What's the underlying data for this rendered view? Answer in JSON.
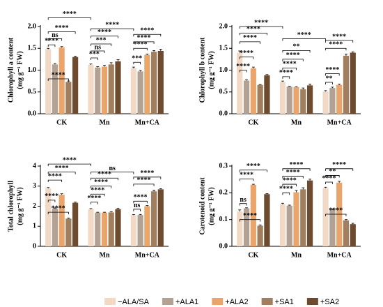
{
  "legend": [
    {
      "name": "−ALA/SA",
      "color": "#f1d9c6"
    },
    {
      "name": "+ALA1",
      "color": "#b3a293"
    },
    {
      "name": "+ALA2",
      "color": "#eaa56d"
    },
    {
      "name": "+SA1",
      "color": "#a07e5e"
    },
    {
      "name": "+SA2",
      "color": "#6e4a2f"
    }
  ],
  "chart_data": [
    {
      "type": "bar",
      "ylabel": [
        "Chlorophyll a content",
        "(mg g⁻¹ FW)"
      ],
      "categories": [
        "CK",
        "Mn",
        "Mn+CA"
      ],
      "ylim": [
        0,
        2
      ],
      "yticks": [
        {
          "value": 0,
          "label": "0.0"
        },
        0.5,
        {
          "value": 1,
          "label": "1.0"
        },
        1.5,
        {
          "value": 2,
          "label": "2.0"
        }
      ],
      "series": [
        {
          "values": [
            1.48,
            1.12,
            1.04
          ],
          "errors": [
            0.02,
            0.02,
            0.03
          ]
        },
        {
          "values": [
            1.13,
            1.06,
            0.97
          ],
          "errors": [
            0.02,
            0.02,
            0.02
          ]
        },
        {
          "values": [
            1.52,
            1.08,
            1.35
          ],
          "errors": [
            0.02,
            0.03,
            0.02
          ]
        },
        {
          "values": [
            0.73,
            1.13,
            1.42
          ],
          "errors": [
            0.02,
            0.04,
            0.03
          ]
        },
        {
          "values": [
            1.3,
            1.2,
            1.44
          ],
          "errors": [
            0.02,
            0.04,
            0.04
          ]
        }
      ],
      "brackets": [
        {
          "label": "****",
          "from": [
            0,
            0
          ],
          "to": [
            1,
            0
          ],
          "y": 2.2
        },
        {
          "label": "****",
          "from": [
            1,
            0
          ],
          "to": [
            2,
            0
          ],
          "y": 1.95
        },
        {
          "label": "****",
          "from": [
            0,
            0
          ],
          "to": [
            0,
            4
          ],
          "y": 1.88
        },
        {
          "label": "ns",
          "from": [
            0,
            0
          ],
          "to": [
            0,
            2
          ],
          "y": 1.72
        },
        {
          "label": "****",
          "from": [
            0,
            0
          ],
          "to": [
            0,
            1
          ],
          "y": 1.58
        },
        {
          "label": "****",
          "from": [
            0,
            0
          ],
          "to": [
            0,
            3
          ],
          "y": 0.8
        },
        {
          "label": "****",
          "from": [
            1,
            0
          ],
          "to": [
            1,
            4
          ],
          "y": 1.78
        },
        {
          "label": "***",
          "from": [
            1,
            0
          ],
          "to": [
            1,
            3
          ],
          "y": 1.6
        },
        {
          "label": "ns",
          "from": [
            1,
            0
          ],
          "to": [
            1,
            2
          ],
          "y": 1.44
        },
        {
          "label": "***",
          "from": [
            1,
            0
          ],
          "to": [
            1,
            1
          ],
          "y": 1.28
        },
        {
          "label": "****",
          "from": [
            2,
            0
          ],
          "to": [
            2,
            4
          ],
          "y": 1.82
        },
        {
          "label": "****",
          "from": [
            2,
            0
          ],
          "to": [
            2,
            3
          ],
          "y": 1.65
        },
        {
          "label": "****",
          "from": [
            2,
            0
          ],
          "to": [
            2,
            2
          ],
          "y": 1.5
        },
        {
          "label": "***",
          "from": [
            2,
            0
          ],
          "to": [
            2,
            1
          ],
          "y": 1.18
        }
      ]
    },
    {
      "type": "bar",
      "ylabel": [
        "Chlorophyll b content",
        "(mg g⁻¹ FW)"
      ],
      "categories": [
        "CK",
        "Mn",
        "Mn+CA"
      ],
      "ylim": [
        0,
        2
      ],
      "yticks": [
        {
          "value": 0,
          "label": "0.0"
        },
        0.5,
        {
          "value": 1,
          "label": "1.0"
        },
        1.5,
        {
          "value": 2,
          "label": "2.0"
        }
      ],
      "series": [
        {
          "values": [
            1.4,
            0.73,
            0.51
          ],
          "errors": [
            0.04,
            0.02,
            0.02
          ]
        },
        {
          "values": [
            0.76,
            0.62,
            0.59
          ],
          "errors": [
            0.02,
            0.01,
            0.02
          ]
        },
        {
          "values": [
            1.04,
            0.61,
            0.66
          ],
          "errors": [
            0.03,
            0.01,
            0.02
          ]
        },
        {
          "values": [
            0.66,
            0.56,
            1.33
          ],
          "errors": [
            0.01,
            0.03,
            0.04
          ]
        },
        {
          "values": [
            0.88,
            0.65,
            1.4
          ],
          "errors": [
            0.02,
            0.03,
            0.02
          ]
        }
      ],
      "brackets": [
        {
          "label": "****",
          "from": [
            0,
            0
          ],
          "to": [
            1,
            0
          ],
          "y": 2.0
        },
        {
          "label": "****",
          "from": [
            1,
            0
          ],
          "to": [
            2,
            0
          ],
          "y": 1.72
        },
        {
          "label": "****",
          "from": [
            0,
            0
          ],
          "to": [
            0,
            4
          ],
          "y": 1.85
        },
        {
          "label": "****",
          "from": [
            0,
            0
          ],
          "to": [
            0,
            3
          ],
          "y": 1.65
        },
        {
          "label": "****",
          "from": [
            0,
            0
          ],
          "to": [
            0,
            2
          ],
          "y": 1.3
        },
        {
          "label": "****",
          "from": [
            0,
            0
          ],
          "to": [
            0,
            1
          ],
          "y": 1.0
        },
        {
          "label": "**",
          "from": [
            1,
            0
          ],
          "to": [
            1,
            4
          ],
          "y": 1.45
        },
        {
          "label": "****",
          "from": [
            1,
            0
          ],
          "to": [
            1,
            3
          ],
          "y": 1.25
        },
        {
          "label": "****",
          "from": [
            1,
            0
          ],
          "to": [
            1,
            2
          ],
          "y": 1.05
        },
        {
          "label": "****",
          "from": [
            1,
            0
          ],
          "to": [
            1,
            1
          ],
          "y": 0.85
        },
        {
          "label": "****",
          "from": [
            2,
            0
          ],
          "to": [
            2,
            4
          ],
          "y": 1.68
        },
        {
          "label": "****",
          "from": [
            2,
            0
          ],
          "to": [
            2,
            3
          ],
          "y": 1.5
        },
        {
          "label": "****",
          "from": [
            2,
            0
          ],
          "to": [
            2,
            2
          ],
          "y": 0.92
        },
        {
          "label": "**",
          "from": [
            2,
            0
          ],
          "to": [
            2,
            1
          ],
          "y": 0.72
        }
      ]
    },
    {
      "type": "bar",
      "ylabel": [
        "Total chlorophyll",
        "(mg g⁻¹ FW)"
      ],
      "categories": [
        "CK",
        "Mn",
        "Mn+CA"
      ],
      "ylim": [
        0,
        4
      ],
      "yticks": [
        0,
        1,
        2,
        3,
        4
      ],
      "series": [
        {
          "values": [
            2.89,
            1.85,
            1.55
          ],
          "errors": [
            0.04,
            0.03,
            0.03
          ]
        },
        {
          "values": [
            1.88,
            1.68,
            1.56
          ],
          "errors": [
            0.03,
            0.02,
            0.03
          ]
        },
        {
          "values": [
            2.57,
            1.68,
            2.0
          ],
          "errors": [
            0.05,
            0.02,
            0.03
          ]
        },
        {
          "values": [
            1.38,
            1.69,
            2.74
          ],
          "errors": [
            0.03,
            0.04,
            0.06
          ]
        },
        {
          "values": [
            2.17,
            1.85,
            2.84
          ],
          "errors": [
            0.03,
            0.04,
            0.03
          ]
        }
      ],
      "brackets": [
        {
          "label": "****",
          "from": [
            0,
            0
          ],
          "to": [
            1,
            0
          ],
          "y": 4.1
        },
        {
          "label": "ns",
          "from": [
            1,
            0
          ],
          "to": [
            2,
            0
          ],
          "y": 3.7
        },
        {
          "label": "****",
          "from": [
            0,
            0
          ],
          "to": [
            0,
            4
          ],
          "y": 3.7
        },
        {
          "label": "****",
          "from": [
            0,
            0
          ],
          "to": [
            0,
            2
          ],
          "y": 3.3
        },
        {
          "label": "****",
          "from": [
            0,
            0
          ],
          "to": [
            0,
            1
          ],
          "y": 2.3
        },
        {
          "label": "****",
          "from": [
            0,
            0
          ],
          "to": [
            0,
            3
          ],
          "y": 1.7
        },
        {
          "label": "****",
          "from": [
            1,
            0
          ],
          "to": [
            1,
            4
          ],
          "y": 3.4
        },
        {
          "label": "****",
          "from": [
            1,
            0
          ],
          "to": [
            1,
            3
          ],
          "y": 3.0
        },
        {
          "label": "****",
          "from": [
            1,
            0
          ],
          "to": [
            1,
            2
          ],
          "y": 2.6
        },
        {
          "label": "****",
          "from": [
            1,
            0
          ],
          "to": [
            1,
            1
          ],
          "y": 2.2
        },
        {
          "label": "****",
          "from": [
            2,
            0
          ],
          "to": [
            2,
            4
          ],
          "y": 3.45
        },
        {
          "label": "****",
          "from": [
            2,
            0
          ],
          "to": [
            2,
            3
          ],
          "y": 3.1
        },
        {
          "label": "****",
          "from": [
            2,
            0
          ],
          "to": [
            2,
            2
          ],
          "y": 2.25
        },
        {
          "label": "ns",
          "from": [
            2,
            0
          ],
          "to": [
            2,
            1
          ],
          "y": 1.85
        }
      ]
    },
    {
      "type": "bar",
      "ylabel": [
        "Carotenoid content",
        "(mg g⁻¹ FW)"
      ],
      "categories": [
        "CK",
        "Mn",
        "Mn+CA"
      ],
      "ylim": [
        0,
        0.3
      ],
      "yticks": [
        {
          "value": 0,
          "label": "0.0"
        },
        0.1,
        0.2,
        0.3
      ],
      "series": [
        {
          "values": [
            0.13,
            0.157,
            0.218
          ],
          "errors": [
            0.006,
            0.004,
            0.003
          ]
        },
        {
          "values": [
            0.142,
            0.152,
            0.137
          ],
          "errors": [
            0.002,
            0.002,
            0.003
          ]
        },
        {
          "values": [
            0.23,
            0.202,
            0.238
          ],
          "errors": [
            0.002,
            0.007,
            0.005
          ]
        },
        {
          "values": [
            0.077,
            0.213,
            0.097
          ],
          "errors": [
            0.003,
            0.006,
            0.003
          ]
        },
        {
          "values": [
            0.195,
            0.246,
            0.083
          ],
          "errors": [
            0.002,
            0.005,
            0.003
          ]
        }
      ],
      "brackets": [
        {
          "label": "****",
          "from": [
            0,
            0
          ],
          "to": [
            0,
            4
          ],
          "y": 0.285
        },
        {
          "label": "****",
          "from": [
            0,
            0
          ],
          "to": [
            0,
            2
          ],
          "y": 0.252
        },
        {
          "label": "ns",
          "from": [
            0,
            0
          ],
          "to": [
            0,
            1
          ],
          "y": 0.16
        },
        {
          "label": "****",
          "from": [
            0,
            0
          ],
          "to": [
            0,
            3
          ],
          "y": 0.1
        },
        {
          "label": "****",
          "from": [
            1,
            0
          ],
          "to": [
            1,
            4
          ],
          "y": 0.29
        },
        {
          "label": "****",
          "from": [
            1,
            0
          ],
          "to": [
            1,
            3
          ],
          "y": 0.262
        },
        {
          "label": "****",
          "from": [
            1,
            0
          ],
          "to": [
            1,
            2
          ],
          "y": 0.232
        },
        {
          "label": "****",
          "from": [
            1,
            0
          ],
          "to": [
            1,
            1
          ],
          "y": 0.2
        },
        {
          "label": "****",
          "from": [
            2,
            0
          ],
          "to": [
            2,
            4
          ],
          "y": 0.29
        },
        {
          "label": "**",
          "from": [
            2,
            0
          ],
          "to": [
            2,
            2
          ],
          "y": 0.265
        },
        {
          "label": "****",
          "from": [
            2,
            0
          ],
          "to": [
            2,
            1
          ],
          "y": 0.24
        },
        {
          "label": "****",
          "from": [
            2,
            0
          ],
          "to": [
            2,
            3
          ],
          "y": 0.12
        }
      ]
    }
  ]
}
